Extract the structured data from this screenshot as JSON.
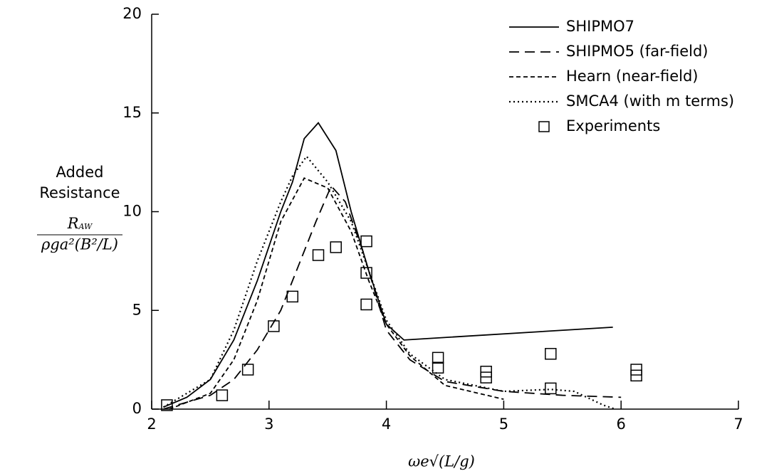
{
  "chart_data": {
    "type": "line",
    "xlabel": "ωe√(L/g)",
    "ylabel": [
      "Added",
      "Resistance"
    ],
    "ylabel_fraction": {
      "numerator": "R",
      "numerator_sub": "AW",
      "denominator": "ρga²(B²/L)"
    },
    "xlim": [
      2,
      7
    ],
    "xticks": [
      2,
      3,
      4,
      5,
      6,
      7
    ],
    "ylim": [
      0,
      20
    ],
    "yticks": [
      0,
      5,
      10,
      15,
      20
    ],
    "grid": false,
    "legend": "upper right",
    "series": [
      {
        "name": "SHIPMO7",
        "color": "#000000",
        "style": "solid",
        "x": [
          2.1,
          2.3,
          2.5,
          2.7,
          2.9,
          3.1,
          3.2,
          3.3,
          3.42,
          3.57,
          3.7,
          3.85,
          4.0,
          4.15,
          5.93
        ],
        "values": [
          0.1,
          0.6,
          1.5,
          3.5,
          6.5,
          10,
          11.5,
          13.7,
          14.5,
          13.1,
          10,
          7,
          4.3,
          3.5,
          4.15
        ]
      },
      {
        "name": "SHIPMO5 (far-field)",
        "color": "#000000",
        "style": "long-dash",
        "x": [
          2.1,
          2.5,
          2.7,
          2.9,
          3.1,
          3.3,
          3.4,
          3.53,
          3.65,
          3.8,
          3.9,
          4.0,
          4.2,
          4.5,
          5.0,
          5.5,
          6.0
        ],
        "values": [
          0,
          0.7,
          1.5,
          3,
          5,
          8,
          9.5,
          11.3,
          10.5,
          8,
          6,
          4,
          2.5,
          1.4,
          0.9,
          0.7,
          0.6
        ]
      },
      {
        "name": "Hearn (near-field)",
        "color": "#000000",
        "style": "dash",
        "x": [
          2.15,
          2.5,
          2.7,
          2.9,
          3.1,
          3.3,
          3.5,
          3.7,
          3.85,
          4.0,
          4.2,
          4.5,
          5.0
        ],
        "values": [
          0,
          0.8,
          2.5,
          5.5,
          9.5,
          11.7,
          11.2,
          9,
          6.5,
          4.3,
          2.7,
          1.2,
          0.5
        ]
      },
      {
        "name": "SMCA4 (with m terms)",
        "color": "#000000",
        "style": "dot",
        "x": [
          2.1,
          2.5,
          2.7,
          2.9,
          3.1,
          3.2,
          3.32,
          3.5,
          3.7,
          3.85,
          4.0,
          4.2,
          4.5,
          5.0,
          5.4,
          5.6,
          5.85,
          5.95
        ],
        "values": [
          0.1,
          1.5,
          4,
          7.5,
          10.5,
          11.8,
          12.8,
          11.5,
          9.5,
          7,
          4.5,
          2.8,
          1.5,
          0.9,
          1.0,
          0.9,
          0.2,
          0
        ]
      },
      {
        "name": "Experiments",
        "color": "#000000",
        "style": "square",
        "x": [
          2.13,
          2.6,
          2.82,
          3.04,
          3.2,
          3.42,
          3.57,
          3.83,
          3.83,
          3.83,
          4.44,
          4.44,
          4.85,
          4.85,
          5.4,
          5.4,
          6.13,
          6.13
        ],
        "values": [
          0.2,
          0.7,
          2.0,
          4.2,
          5.7,
          7.8,
          8.2,
          8.5,
          6.9,
          5.3,
          2.1,
          2.6,
          1.6,
          1.9,
          2.8,
          1.05,
          1.7,
          2.0
        ]
      }
    ]
  }
}
